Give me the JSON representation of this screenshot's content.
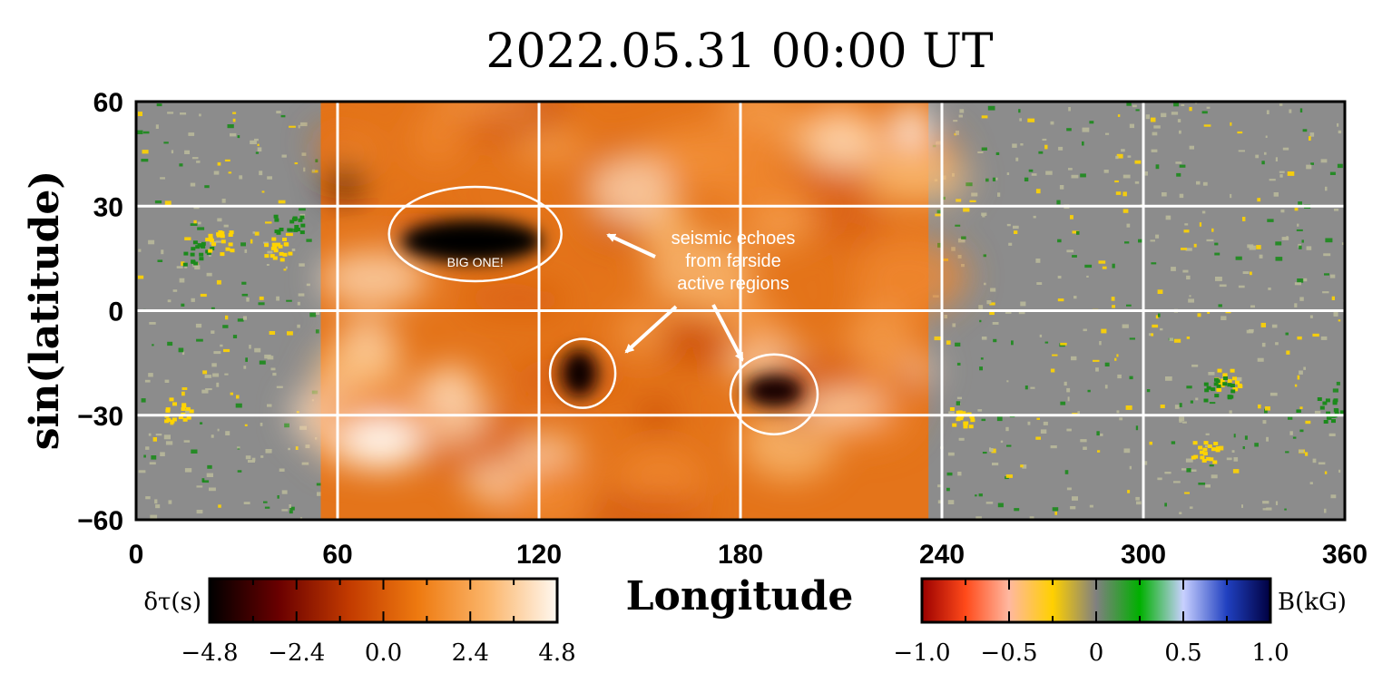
{
  "chart_data": {
    "type": "heatmap",
    "title": "2022.05.31  00:00  UT",
    "xlabel": "Longitude",
    "ylabel": "sin(latitude)",
    "xlim": [
      0,
      360
    ],
    "ylim": [
      -60,
      60
    ],
    "x_ticks": [
      "0",
      "60",
      "120",
      "180",
      "240",
      "300",
      "360"
    ],
    "y_ticks": [
      "60",
      "30",
      "0",
      "−30",
      "−60"
    ],
    "grid": true,
    "farside_longitude_range": [
      55,
      236
    ],
    "colorbars": [
      {
        "label": "δτ(s)",
        "ticks": [
          "−4.8",
          "−2.4",
          "0.0",
          "2.4",
          "4.8"
        ],
        "range": [
          -4.8,
          4.8
        ],
        "colors": [
          "#000000",
          "#6a0000",
          "#c23a00",
          "#ee7a10",
          "#fbb56a",
          "#fff8f0"
        ]
      },
      {
        "label": "B(kG)",
        "ticks": [
          "−1.0",
          "−0.5",
          "0",
          "0.5",
          "1.0"
        ],
        "range": [
          -1.0,
          1.0
        ],
        "colors": [
          "#9b0000",
          "#ff4a1a",
          "#ffb8a0",
          "#ffd000",
          "#808080",
          "#00b000",
          "#c8d0ff",
          "#2040c0",
          "#000040"
        ]
      }
    ],
    "farside_signals": [
      {
        "lon": 100,
        "lat": 20,
        "label": "BIG ONE!"
      },
      {
        "lon": 132,
        "lat": -18,
        "label": ""
      },
      {
        "lon": 190,
        "lat": -23,
        "label": ""
      }
    ],
    "annotations": {
      "main_text": [
        "seismic echoes",
        "from farside",
        "active regions"
      ],
      "big_label": "BIG ONE!"
    },
    "magnetic_colors": {
      "background": "#8c8c8c",
      "positive": "#1b8a1b",
      "negative": "#ffd400",
      "faint": "#b8b89a"
    }
  }
}
